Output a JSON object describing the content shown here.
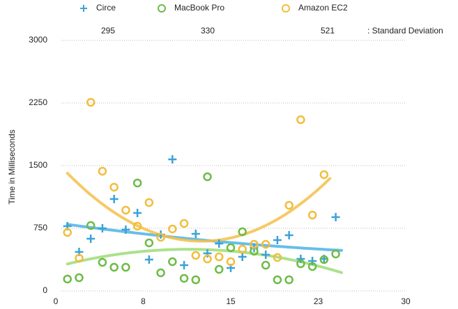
{
  "chart_data": {
    "type": "scatter",
    "y_label": "Time in Milliseconds",
    "std_dev_label": ": Standard Deviation",
    "xlim": [
      0,
      30
    ],
    "xticks": [
      0,
      {
        "value": 7.5,
        "label": "8"
      },
      15,
      {
        "value": 22.5,
        "label": "23"
      },
      30
    ],
    "ylim": [
      0,
      3000
    ],
    "yticks": [
      0,
      750,
      1500,
      2250,
      3000
    ],
    "grid": true,
    "trendline": "quadratic",
    "series": [
      {
        "name": "Circe",
        "color": "#3aa3d8",
        "trend_color": "#4db3e3",
        "marker": "plus",
        "std_dev": 295,
        "x": [
          1,
          2,
          3,
          4,
          5,
          6,
          7,
          8,
          9,
          10,
          11,
          12,
          13,
          14,
          15,
          16,
          17,
          18,
          19,
          20,
          21,
          22,
          23,
          24
        ],
        "values": [
          775,
          467,
          625,
          750,
          1100,
          733,
          933,
          375,
          675,
          1575,
          308,
          683,
          450,
          567,
          275,
          408,
          517,
          433,
          608,
          667,
          383,
          358,
          383,
          883
        ]
      },
      {
        "name": "MacBook Pro",
        "color": "#6cbb45",
        "trend_color": "#9edc78",
        "marker": "circle",
        "std_dev": 330,
        "x": [
          1,
          2,
          3,
          4,
          5,
          6,
          7,
          8,
          9,
          10,
          11,
          12,
          13,
          14,
          15,
          16,
          17,
          18,
          19,
          20,
          21,
          22,
          23,
          24
        ],
        "values": [
          142,
          158,
          783,
          342,
          283,
          283,
          1292,
          575,
          217,
          350,
          150,
          133,
          1367,
          258,
          517,
          708,
          475,
          308,
          133,
          133,
          325,
          292,
          375,
          442
        ]
      },
      {
        "name": "Amazon EC2",
        "color": "#f2bd3a",
        "trend_color": "#f4c04a",
        "marker": "circle",
        "std_dev": 521,
        "x": [
          1,
          2,
          3,
          4,
          5,
          6,
          7,
          8,
          9,
          10,
          11,
          12,
          13,
          14,
          15,
          16,
          17,
          18,
          19,
          20,
          21,
          22,
          23
        ],
        "values": [
          700,
          392,
          2258,
          1433,
          1242,
          967,
          775,
          1058,
          642,
          742,
          808,
          425,
          383,
          408,
          350,
          500,
          558,
          558,
          400,
          1025,
          2050,
          908,
          1392
        ]
      }
    ]
  }
}
